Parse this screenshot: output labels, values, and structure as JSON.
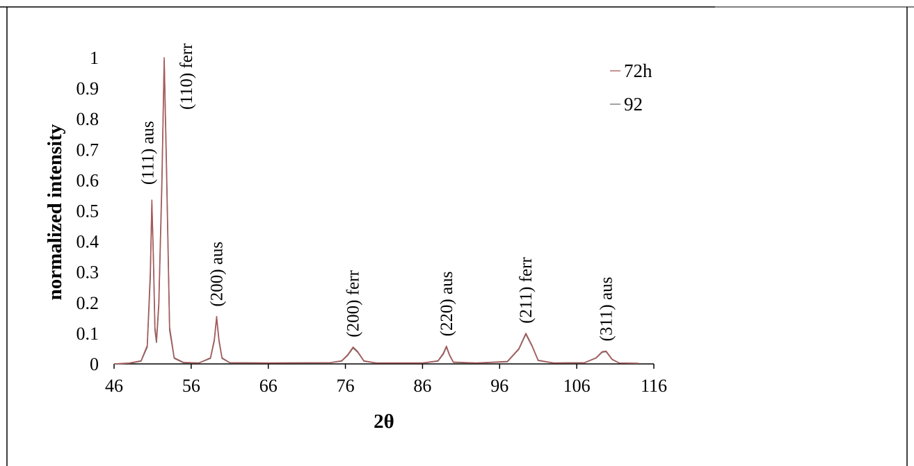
{
  "chart_data": {
    "type": "line",
    "xlabel": "2θ",
    "ylabel": "normalized intensity",
    "xlim": [
      46,
      116
    ],
    "ylim": [
      0,
      1
    ],
    "x_ticks": [
      46,
      56,
      66,
      76,
      86,
      96,
      106,
      116
    ],
    "y_ticks": [
      0,
      0.1,
      0.2,
      0.3,
      0.4,
      0.5,
      0.6,
      0.7,
      0.8,
      0.9,
      1
    ],
    "grid": false,
    "legend_position": "top-right",
    "series": [
      {
        "name": "72h",
        "color": "#a85a5a",
        "points": [
          [
            46.0,
            0.0
          ],
          [
            48.0,
            0.003
          ],
          [
            49.5,
            0.01
          ],
          [
            50.3,
            0.06
          ],
          [
            50.7,
            0.3
          ],
          [
            50.9,
            0.535
          ],
          [
            51.1,
            0.35
          ],
          [
            51.3,
            0.12
          ],
          [
            51.5,
            0.075
          ],
          [
            51.8,
            0.2
          ],
          [
            52.2,
            0.6
          ],
          [
            52.5,
            1.0
          ],
          [
            52.8,
            0.65
          ],
          [
            53.2,
            0.12
          ],
          [
            53.8,
            0.02
          ],
          [
            55.0,
            0.005
          ],
          [
            57.0,
            0.003
          ],
          [
            58.5,
            0.02
          ],
          [
            59.0,
            0.08
          ],
          [
            59.3,
            0.155
          ],
          [
            59.6,
            0.08
          ],
          [
            60.0,
            0.02
          ],
          [
            61.0,
            0.004
          ],
          [
            66.0,
            0.003
          ],
          [
            74.0,
            0.004
          ],
          [
            75.5,
            0.01
          ],
          [
            76.3,
            0.03
          ],
          [
            77.0,
            0.055
          ],
          [
            77.6,
            0.04
          ],
          [
            78.4,
            0.01
          ],
          [
            80.0,
            0.003
          ],
          [
            86.0,
            0.003
          ],
          [
            88.0,
            0.01
          ],
          [
            88.7,
            0.035
          ],
          [
            89.1,
            0.058
          ],
          [
            89.5,
            0.03
          ],
          [
            90.0,
            0.006
          ],
          [
            93.0,
            0.003
          ],
          [
            97.0,
            0.008
          ],
          [
            98.5,
            0.05
          ],
          [
            99.4,
            0.1
          ],
          [
            100.2,
            0.06
          ],
          [
            101.0,
            0.012
          ],
          [
            103.0,
            0.003
          ],
          [
            107.0,
            0.004
          ],
          [
            108.5,
            0.02
          ],
          [
            109.3,
            0.04
          ],
          [
            109.8,
            0.042
          ],
          [
            110.6,
            0.015
          ],
          [
            111.5,
            0.003
          ],
          [
            114.0,
            0.002
          ]
        ]
      },
      {
        "name": "92",
        "color": "#6f6f6f",
        "points": [
          [
            46.0,
            0.0
          ],
          [
            48.0,
            0.002
          ],
          [
            49.5,
            0.009
          ],
          [
            50.3,
            0.055
          ],
          [
            50.7,
            0.28
          ],
          [
            50.9,
            0.525
          ],
          [
            51.1,
            0.34
          ],
          [
            51.3,
            0.11
          ],
          [
            51.5,
            0.07
          ],
          [
            51.8,
            0.19
          ],
          [
            52.2,
            0.58
          ],
          [
            52.5,
            0.99
          ],
          [
            52.8,
            0.63
          ],
          [
            53.2,
            0.11
          ],
          [
            53.8,
            0.018
          ],
          [
            55.0,
            0.004
          ],
          [
            57.0,
            0.003
          ],
          [
            58.5,
            0.018
          ],
          [
            59.0,
            0.075
          ],
          [
            59.3,
            0.15
          ],
          [
            59.6,
            0.075
          ],
          [
            60.0,
            0.018
          ],
          [
            61.0,
            0.004
          ],
          [
            66.0,
            0.003
          ],
          [
            74.0,
            0.004
          ],
          [
            75.5,
            0.009
          ],
          [
            76.3,
            0.028
          ],
          [
            77.0,
            0.052
          ],
          [
            77.6,
            0.038
          ],
          [
            78.4,
            0.009
          ],
          [
            80.0,
            0.003
          ],
          [
            86.0,
            0.003
          ],
          [
            88.0,
            0.009
          ],
          [
            88.7,
            0.032
          ],
          [
            89.1,
            0.055
          ],
          [
            89.5,
            0.028
          ],
          [
            90.0,
            0.005
          ],
          [
            93.0,
            0.003
          ],
          [
            97.0,
            0.007
          ],
          [
            98.5,
            0.048
          ],
          [
            99.4,
            0.097
          ],
          [
            100.2,
            0.058
          ],
          [
            101.0,
            0.011
          ],
          [
            103.0,
            0.003
          ],
          [
            107.0,
            0.004
          ],
          [
            108.5,
            0.019
          ],
          [
            109.3,
            0.038
          ],
          [
            109.8,
            0.04
          ],
          [
            110.6,
            0.014
          ],
          [
            111.5,
            0.003
          ],
          [
            114.0,
            0.002
          ]
        ]
      }
    ],
    "annotations": [
      {
        "text": "(111) aus",
        "x": 50.9,
        "y": 0.535
      },
      {
        "text": "(110) ferr",
        "x": 52.5,
        "y": 1.0
      },
      {
        "text": "(200) aus",
        "x": 59.3,
        "y": 0.155
      },
      {
        "text": "(200) ferr",
        "x": 77.0,
        "y": 0.055
      },
      {
        "text": "(220) aus",
        "x": 89.1,
        "y": 0.058
      },
      {
        "text": "(211) ferr",
        "x": 99.4,
        "y": 0.1
      },
      {
        "text": "(311) aus",
        "x": 109.8,
        "y": 0.042
      }
    ]
  }
}
